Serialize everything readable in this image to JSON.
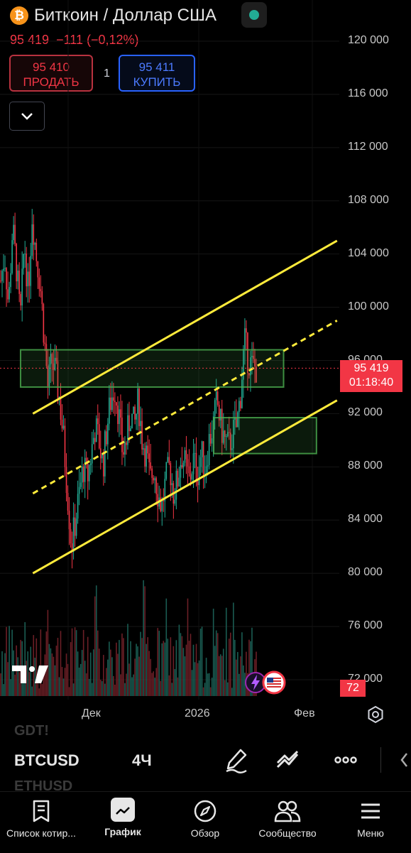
{
  "header": {
    "symbol_title": "Биткоин / Доллар США",
    "logo_glyph": "₿",
    "price": "95 419",
    "change": "−111 (−0,12%)",
    "market_status_color": "#22ab94"
  },
  "trade": {
    "sell_price": "95 410",
    "sell_label": "ПРОДАТЬ",
    "quantity": "1",
    "buy_price": "95 411",
    "buy_label": "КУПИТЬ"
  },
  "chart_data": {
    "type": "candlestick",
    "symbol": "BTCUSD",
    "interval": "4Ч",
    "y_ticks": [
      "120 000",
      "116 000",
      "112 000",
      "108 000",
      "104 000",
      "100 000",
      "96 000",
      "92 000",
      "88 000",
      "84 000",
      "80 000",
      "76 000",
      "72 000"
    ],
    "ylim": [
      70000,
      122000
    ],
    "x_ticks": [
      "Дек",
      "2026",
      "Фев"
    ],
    "current_price": "95 419",
    "countdown": "01:18:40",
    "volume_badge": "72",
    "drawings": {
      "channel_color": "#ffeb3b",
      "zone_color": "#4caf50",
      "upper_channel": [
        [
          0.08,
          92000
        ],
        [
          0.82,
          105000
        ]
      ],
      "mid_channel": [
        [
          0.08,
          86000
        ],
        [
          0.82,
          99000
        ]
      ],
      "lower_channel": [
        [
          0.08,
          80000
        ],
        [
          0.82,
          93000
        ]
      ],
      "zone_upper": {
        "x": [
          0.05,
          0.69
        ],
        "y": [
          94000,
          96800
        ]
      },
      "zone_lower": {
        "x": [
          0.52,
          0.77
        ],
        "y": [
          89000,
          91700
        ]
      }
    },
    "price_path": [
      102000,
      104000,
      100000,
      106000,
      103000,
      99000,
      105000,
      101000,
      107000,
      104000,
      102000,
      98000,
      94000,
      96000,
      95000,
      93000,
      90000,
      86000,
      82000,
      84000,
      86000,
      88000,
      87000,
      89000,
      91000,
      90000,
      88000,
      91000,
      93000,
      94000,
      92000,
      89000,
      90000,
      92000,
      91000,
      93000,
      90000,
      89000,
      87000,
      88000,
      86000,
      85000,
      87000,
      88000,
      86000,
      87000,
      89000,
      88000,
      87000,
      88500,
      87500,
      89000,
      88000,
      90000,
      91000,
      93000,
      91000,
      90000,
      89500,
      90500,
      91000,
      93500,
      97500,
      96000,
      95500,
      95419
    ]
  },
  "toolbar": {
    "symbol": "BTCUSD",
    "interval": "4Ч",
    "ghost_above": "GDT!",
    "ghost_below": "ETHUSD"
  },
  "nav": {
    "items": [
      "Список котир...",
      "График",
      "Обзор",
      "Сообщество",
      "Меню"
    ]
  },
  "colors": {
    "up": "#22ab94",
    "down": "#f23645",
    "background": "#000000"
  }
}
